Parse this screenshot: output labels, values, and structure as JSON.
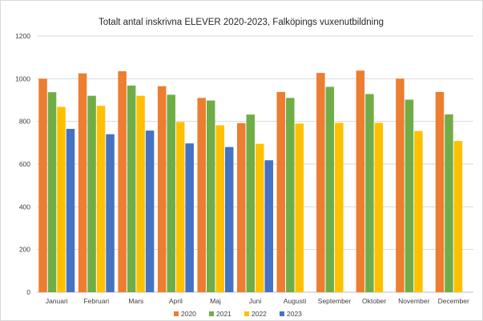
{
  "chart_data": {
    "type": "bar",
    "title": "Totalt antal inskrivna ELEVER 2020-2023, Falköpings vuxenutbildning",
    "xlabel": "",
    "ylabel": "",
    "ylim": [
      0,
      1200
    ],
    "yticks": [
      0,
      200,
      400,
      600,
      800,
      1000,
      1200
    ],
    "grid": true,
    "legend_position": "bottom",
    "categories": [
      "Januari",
      "Februari",
      "Mars",
      "April",
      "Maj",
      "Juni",
      "Augusti",
      "September",
      "Oktober",
      "November",
      "December"
    ],
    "series": [
      {
        "name": "2020",
        "color": "#ED7D31",
        "values": [
          1000,
          1025,
          1035,
          965,
          910,
          792,
          938,
          1027,
          1038,
          1000,
          938
        ]
      },
      {
        "name": "2021",
        "color": "#70AD47",
        "values": [
          937,
          920,
          968,
          925,
          898,
          832,
          910,
          962,
          928,
          902,
          833
        ]
      },
      {
        "name": "2022",
        "color": "#FFC000",
        "values": [
          868,
          873,
          920,
          797,
          782,
          695,
          790,
          793,
          793,
          755,
          708
        ]
      },
      {
        "name": "2023",
        "color": "#4472C4",
        "values": [
          765,
          740,
          757,
          697,
          680,
          618,
          null,
          null,
          null,
          null,
          null
        ]
      }
    ]
  }
}
